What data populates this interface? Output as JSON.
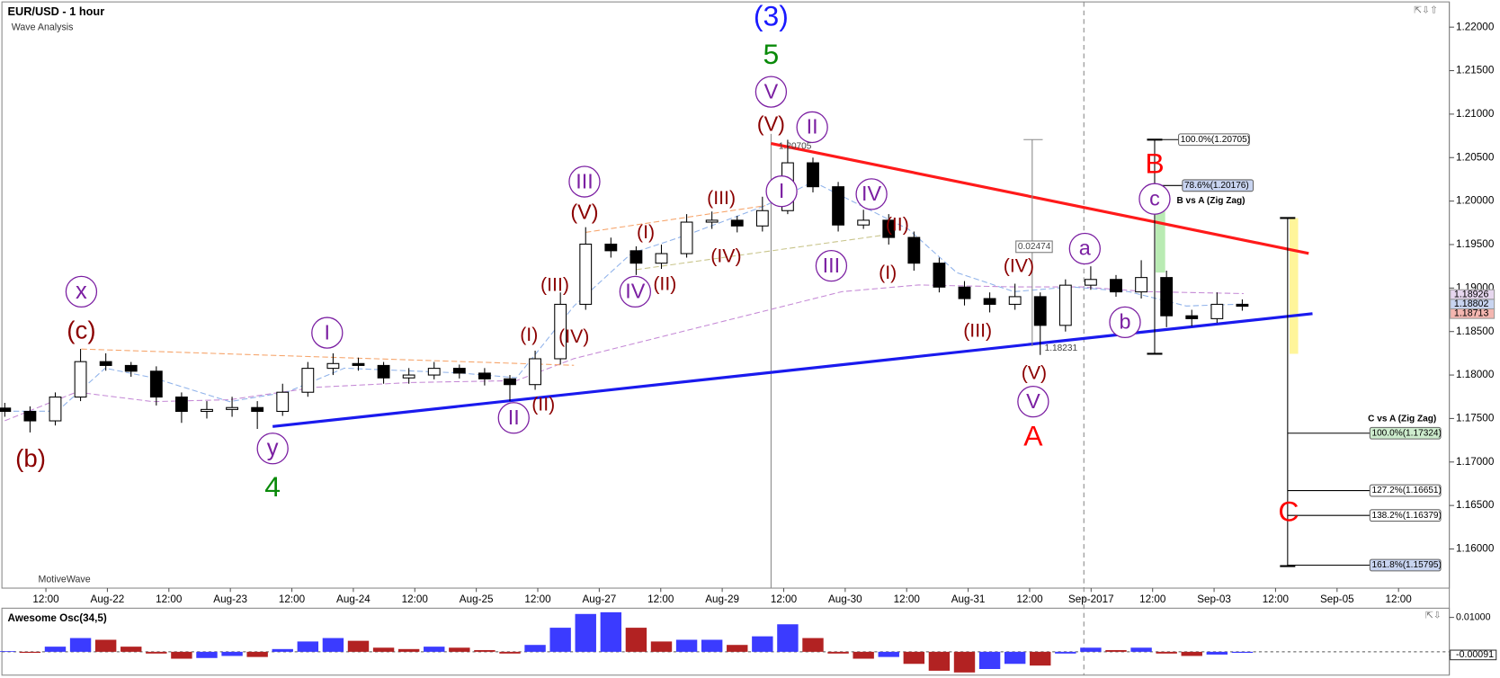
{
  "chart_data": {
    "type": "candlestick",
    "title": "EUR/USD - 1 hour",
    "subtitle": "Wave Analysis",
    "watermark": "MotiveWave",
    "time_labels": [
      "12:00",
      "Aug-22",
      "12:00",
      "Aug-23",
      "12:00",
      "Aug-24",
      "12:00",
      "Aug-25",
      "12:00",
      "Aug-27",
      "12:00",
      "Aug-29",
      "12:00",
      "Aug-30",
      "12:00",
      "Aug-31",
      "12:00",
      "Sep-2017",
      "12:00",
      "Sep-03",
      "12:00",
      "Sep-05",
      "12:00"
    ],
    "up_color": "#ffffff",
    "down_color": "#000000",
    "open": [
      1.1762,
      1.17582,
      1.17473,
      1.17747,
      1.18154,
      1.1811,
      1.18044,
      1.17747,
      1.17582,
      1.17604,
      1.17626,
      1.17582,
      1.17802,
      1.18077,
      1.18132,
      1.1811,
      1.17967,
      1.18,
      1.18077,
      1.18022,
      1.17956,
      1.1789,
      1.18187,
      1.18813,
      1.19505,
      1.19429,
      1.19286,
      1.19396,
      1.19758,
      1.1978,
      1.19714,
      1.1989,
      1.2044,
      1.20165,
      1.19725,
      1.1978,
      1.19582,
      1.19286,
      1.19011,
      1.18879,
      1.18813,
      1.18901,
      1.18571,
      1.19033,
      1.19099,
      1.18956,
      1.19121,
      1.18681,
      1.18648,
      1.18813
    ],
    "high": [
      1.1768,
      1.1764,
      1.178,
      1.183,
      1.1825,
      1.1815,
      1.181,
      1.178,
      1.177,
      1.1775,
      1.177,
      1.179,
      1.1815,
      1.1825,
      1.182,
      1.1815,
      1.1808,
      1.1815,
      1.1812,
      1.1808,
      1.18,
      1.1828,
      1.1895,
      1.197,
      1.1958,
      1.1948,
      1.195,
      1.1985,
      1.1988,
      1.1983,
      1.2005,
      1.20705,
      1.205,
      1.2022,
      1.199,
      1.1985,
      1.1965,
      1.1935,
      1.1908,
      1.1895,
      1.1905,
      1.1895,
      1.191,
      1.1925,
      1.1915,
      1.1932,
      1.192,
      1.1875,
      1.1895,
      1.1887
    ],
    "low": [
      1.1752,
      1.1734,
      1.1742,
      1.177,
      1.1805,
      1.1798,
      1.1765,
      1.1745,
      1.175,
      1.1752,
      1.1738,
      1.1753,
      1.1775,
      1.18,
      1.1805,
      1.179,
      1.179,
      1.1795,
      1.1796,
      1.1788,
      1.177,
      1.1783,
      1.1812,
      1.1875,
      1.1935,
      1.1915,
      1.1922,
      1.1935,
      1.1968,
      1.1964,
      1.1965,
      1.1985,
      1.201,
      1.1965,
      1.1968,
      1.195,
      1.192,
      1.1895,
      1.188,
      1.1872,
      1.1875,
      1.18231,
      1.185,
      1.1898,
      1.189,
      1.1888,
      1.1855,
      1.1856,
      1.186,
      1.1874
    ],
    "close": [
      1.17582,
      1.17473,
      1.17747,
      1.18154,
      1.1811,
      1.18044,
      1.17747,
      1.17582,
      1.17604,
      1.17626,
      1.17582,
      1.17802,
      1.18077,
      1.18132,
      1.1811,
      1.17967,
      1.18,
      1.18077,
      1.18022,
      1.17956,
      1.1789,
      1.18187,
      1.18813,
      1.19505,
      1.19429,
      1.19286,
      1.19396,
      1.19758,
      1.1978,
      1.19714,
      1.1989,
      1.2044,
      1.20165,
      1.19725,
      1.1978,
      1.19582,
      1.19286,
      1.19011,
      1.18879,
      1.18813,
      1.18901,
      1.18571,
      1.19033,
      1.19099,
      1.18956,
      1.19121,
      1.18681,
      1.18648,
      1.18813,
      1.18791
    ],
    "ylim": [
      1.1555,
      1.2229
    ],
    "yticks": [
      {
        "value": 1.16,
        "label": "1.16000"
      },
      {
        "value": 1.165,
        "label": "1.16500"
      },
      {
        "value": 1.17,
        "label": "1.17000"
      },
      {
        "value": 1.175,
        "label": "1.17500"
      },
      {
        "value": 1.18,
        "label": "1.18000"
      },
      {
        "value": 1.185,
        "label": "1.18500"
      },
      {
        "value": 1.19,
        "label": "1.19000"
      },
      {
        "value": 1.195,
        "label": "1.19500"
      },
      {
        "value": 1.2,
        "label": "1.20000"
      },
      {
        "value": 1.205,
        "label": "1.20500"
      },
      {
        "value": 1.21,
        "label": "1.21000"
      },
      {
        "value": 1.215,
        "label": "1.21500"
      },
      {
        "value": 1.22,
        "label": "1.22000"
      }
    ],
    "price_tags": [
      {
        "text": "1.18926",
        "color": "#e6d6ee"
      },
      {
        "text": "1.18802",
        "color": "#c8d4f0"
      },
      {
        "text": "1.18713",
        "color": "#f4b6b0"
      }
    ],
    "wave_labels": [
      {
        "text": "(3)",
        "color": "#1a1aff"
      },
      {
        "text": "5",
        "color": "#0a8a0a"
      },
      {
        "text": "V",
        "color": "#7b1fa2"
      },
      {
        "text": "(V)",
        "color": "#8b0000"
      },
      {
        "text": "II",
        "color": "#7b1fa2"
      },
      {
        "text": "I",
        "color": "#7b1fa2"
      },
      {
        "text": "III",
        "color": "#7b1fa2"
      },
      {
        "text": "(V)",
        "color": "#8b0000"
      },
      {
        "text": "(III)",
        "color": "#8b0000"
      },
      {
        "text": "(I)",
        "color": "#8b0000"
      },
      {
        "text": "(IV)",
        "color": "#8b0000"
      },
      {
        "text": "II",
        "color": "#7b1fa2"
      },
      {
        "text": "(II)",
        "color": "#8b0000"
      },
      {
        "text": "(I)",
        "color": "#8b0000"
      },
      {
        "text": "IV",
        "color": "#7b1fa2"
      },
      {
        "text": "(II)",
        "color": "#8b0000"
      },
      {
        "text": "(III)",
        "color": "#8b0000"
      },
      {
        "text": "(IV)",
        "color": "#8b0000"
      },
      {
        "text": "IV",
        "color": "#7b1fa2"
      },
      {
        "text": "III",
        "color": "#7b1fa2"
      },
      {
        "text": "(II)",
        "color": "#8b0000"
      },
      {
        "text": "(I)",
        "color": "#8b0000"
      },
      {
        "text": "(IV)",
        "color": "#8b0000"
      },
      {
        "text": "(III)",
        "color": "#8b0000"
      },
      {
        "text": "(V)",
        "color": "#8b0000"
      },
      {
        "text": "V",
        "color": "#7b1fa2"
      },
      {
        "text": "A",
        "color": "#ff0000"
      },
      {
        "text": "a",
        "color": "#7b1fa2"
      },
      {
        "text": "b",
        "color": "#7b1fa2"
      },
      {
        "text": "c",
        "color": "#7b1fa2"
      },
      {
        "text": "B",
        "color": "#ff0000"
      },
      {
        "text": "C",
        "color": "#ff0000"
      },
      {
        "text": "x",
        "color": "#7b1fa2"
      },
      {
        "text": "(c)",
        "color": "#8b0000"
      },
      {
        "text": "(b)",
        "color": "#8b0000"
      },
      {
        "text": "I",
        "color": "#7b1fa2"
      },
      {
        "text": "y",
        "color": "#7b1fa2"
      },
      {
        "text": "4",
        "color": "#0a8a0a"
      }
    ],
    "fib_labels": [
      {
        "text": "100.0%(1.20705)",
        "color": "#ffffff"
      },
      {
        "text": "78.6%(1.20176)",
        "color": "#c8d4f0"
      },
      {
        "text": "B vs A (Zig Zag)",
        "color": "none"
      },
      {
        "text": "C vs A (Zig Zag)",
        "color": "none"
      },
      {
        "text": "100.0%(1.17324)",
        "color": "#cdeccd"
      },
      {
        "text": "127.2%(1.16651)",
        "color": "#ffffff"
      },
      {
        "text": "138.2%(1.16379)",
        "color": "#ffffff"
      },
      {
        "text": "161.8%(1.15795)",
        "color": "#c8d4f0"
      }
    ],
    "measure_labels": [
      "1.20705",
      "0.02474",
      "1.18231"
    ],
    "oscillator": {
      "title": "Awesome Osc(34,5)",
      "up_color": "#3b3bff",
      "down_color": "#b22222",
      "values": [
        0.0002,
        -0.0003,
        0.0015,
        0.004,
        0.0035,
        0.0015,
        -0.0005,
        -0.002,
        -0.0018,
        -0.0012,
        -0.0015,
        0.0008,
        0.003,
        0.004,
        0.0032,
        0.0012,
        0.0008,
        0.0015,
        0.0012,
        0.0005,
        -0.0005,
        0.002,
        0.007,
        0.011,
        0.0115,
        0.007,
        0.003,
        0.0035,
        0.0035,
        0.002,
        0.0045,
        0.008,
        0.004,
        -0.0005,
        -0.002,
        -0.0015,
        -0.0035,
        -0.0055,
        -0.006,
        -0.005,
        -0.0035,
        -0.004,
        -0.0005,
        0.0012,
        0.0005,
        0.0012,
        -0.0005,
        -0.0012,
        -0.0008,
        -0.0003
      ],
      "ylim": [
        -0.0065,
        0.0124
      ],
      "yticks": [
        {
          "value": 0.01,
          "label": "0.01000"
        },
        {
          "value": -0.00091,
          "label": "-0.00091"
        }
      ]
    }
  }
}
